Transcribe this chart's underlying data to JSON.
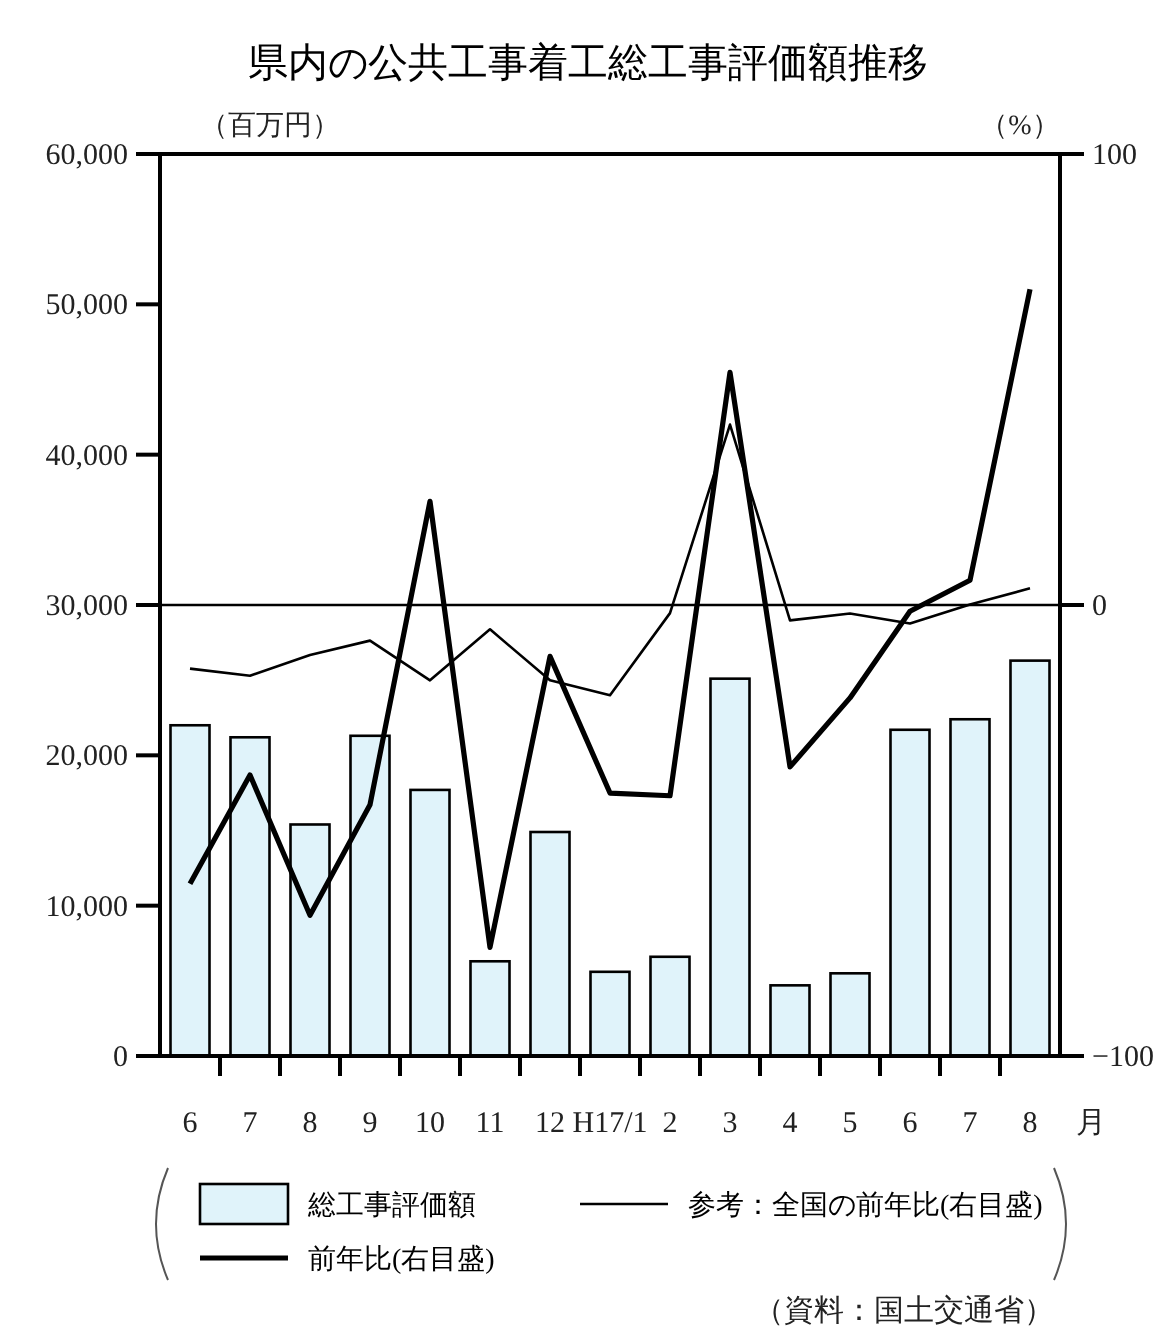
{
  "chart_data": {
    "type": "bar",
    "title": "県内の公共工事着工総工事評価額推移",
    "ylabel": "（百万円）",
    "y2label": "（%）",
    "xlabel": "月",
    "categories": [
      "6",
      "7",
      "8",
      "9",
      "10",
      "11",
      "12",
      "H17/1",
      "2",
      "3",
      "4",
      "5",
      "6",
      "7",
      "8"
    ],
    "series": [
      {
        "name": "総工事評価額",
        "color": "#e0f3fa",
        "values": [
          22000,
          21200,
          15400,
          21300,
          17700,
          6300,
          14900,
          5600,
          6600,
          25100,
          4700,
          5500,
          21700,
          22400,
          26300
        ]
      },
      {
        "name": "前年比(右目盛)",
        "type": "line",
        "axis": "y2",
        "color": "#000000",
        "values": [
          -61.8,
          -37.7,
          -68.8,
          -44.3,
          23,
          -75.9,
          -11.4,
          -41.7,
          -42.3,
          51.6,
          -35.9,
          -20.6,
          -1.4,
          5.5,
          70
        ]
      },
      {
        "name": "参考：全国の前年比(右目盛)",
        "type": "line",
        "axis": "y2",
        "color": "#000000",
        "values": [
          -14.1,
          -15.7,
          -11.1,
          -7.9,
          -16.7,
          -5.4,
          -16.7,
          -20,
          -1.8,
          40,
          -3.4,
          -1.9,
          -4.1,
          0.1,
          3.7
        ]
      }
    ],
    "ylim": [
      0,
      60000
    ],
    "yticks": [
      {
        "value": 0,
        "label": "0"
      },
      {
        "value": 10000,
        "label": "10,000"
      },
      {
        "value": 20000,
        "label": "20,000"
      },
      {
        "value": 30000,
        "label": "30,000"
      },
      {
        "value": 40000,
        "label": "40,000"
      },
      {
        "value": 50000,
        "label": "50,000"
      },
      {
        "value": 60000,
        "label": "60,000"
      }
    ],
    "y2lim": [
      -100,
      100
    ],
    "y2ticks": [
      -100,
      0,
      100
    ],
    "ref_lines": [
      {
        "axis": "y2",
        "value": 0,
        "color": "#000000"
      }
    ],
    "grid": false,
    "legend": "bottom",
    "annotations": [
      "（資料：国土交通省）"
    ]
  }
}
